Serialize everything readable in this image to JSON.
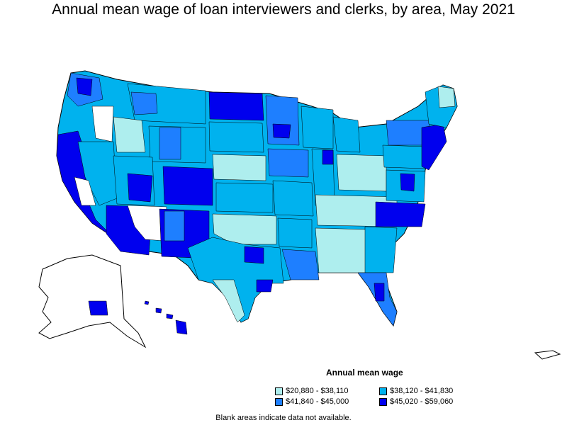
{
  "title": "Annual mean wage of loan interviewers and clerks, by area, May 2021",
  "legend": {
    "title": "Annual mean wage",
    "items": [
      {
        "label": "$20,880 - $38,110",
        "color": "#aeeeee"
      },
      {
        "label": "$38,120 - $41,830",
        "color": "#00b2ee"
      },
      {
        "label": "$41,840 - $45,000",
        "color": "#1e7fff"
      },
      {
        "label": "$45,020 - $59,060",
        "color": "#0000ee"
      }
    ]
  },
  "note": "Blank areas indicate data not available.",
  "colors": {
    "tier1": "#aeeeee",
    "tier2": "#00b2ee",
    "tier3": "#1e7fff",
    "tier4": "#0000ee",
    "blank": "#ffffff",
    "border": "#000000"
  }
}
